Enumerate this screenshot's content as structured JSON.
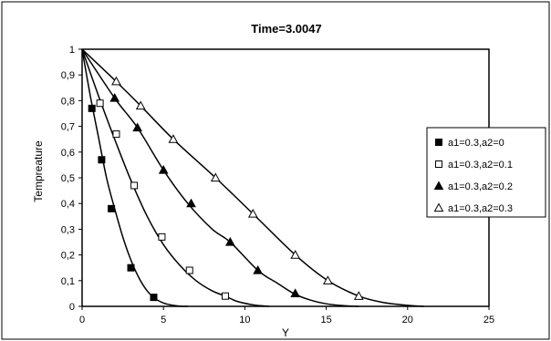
{
  "chart_data": {
    "type": "line",
    "title": "Time=3.0047",
    "xlabel": "Y",
    "ylabel": "Tempreature",
    "xlim": [
      0,
      25
    ],
    "ylim": [
      0,
      1
    ],
    "x_ticks": [
      "0",
      "5",
      "10",
      "15",
      "20",
      "25"
    ],
    "y_ticks": [
      "0",
      "0,1",
      "0,2",
      "0,3",
      "0,4",
      "0,5",
      "0,6",
      "0,7",
      "0,8",
      "0,9",
      "1"
    ],
    "grid": false,
    "legend_position": "right",
    "series": [
      {
        "name": "a1=0.3,a2=0",
        "marker": "filled-square",
        "curve": [
          [
            0,
            1
          ],
          [
            0.5,
            0.82
          ],
          [
            1,
            0.66
          ],
          [
            1.5,
            0.5
          ],
          [
            2,
            0.38
          ],
          [
            2.5,
            0.27
          ],
          [
            3,
            0.18
          ],
          [
            3.5,
            0.11
          ],
          [
            4,
            0.06
          ],
          [
            4.5,
            0.03
          ],
          [
            5,
            0.013
          ],
          [
            5.5,
            0.005
          ],
          [
            6,
            0.001
          ],
          [
            6.5,
            0
          ]
        ],
        "markers": [
          [
            0.6,
            0.77
          ],
          [
            1.2,
            0.57
          ],
          [
            1.8,
            0.38
          ],
          [
            3.0,
            0.15
          ],
          [
            4.4,
            0.035
          ]
        ]
      },
      {
        "name": "a1=0.3,a2=0.1",
        "marker": "open-square",
        "curve": [
          [
            0,
            1
          ],
          [
            1,
            0.82
          ],
          [
            2,
            0.65
          ],
          [
            3,
            0.49
          ],
          [
            4,
            0.35
          ],
          [
            5,
            0.24
          ],
          [
            6,
            0.16
          ],
          [
            7,
            0.1
          ],
          [
            8,
            0.06
          ],
          [
            8.8,
            0.04
          ],
          [
            9.5,
            0.02
          ],
          [
            10.5,
            0.006
          ],
          [
            11.5,
            0
          ]
        ],
        "markers": [
          [
            1.1,
            0.79
          ],
          [
            2.1,
            0.67
          ],
          [
            3.2,
            0.47
          ],
          [
            4.9,
            0.27
          ],
          [
            6.6,
            0.14
          ],
          [
            8.8,
            0.04
          ]
        ]
      },
      {
        "name": "a1=0.3,a2=0.2",
        "marker": "filled-triangle",
        "curve": [
          [
            0,
            1
          ],
          [
            2,
            0.81
          ],
          [
            3.4,
            0.695
          ],
          [
            5,
            0.53
          ],
          [
            6.5,
            0.4
          ],
          [
            8,
            0.3
          ],
          [
            9.1,
            0.25
          ],
          [
            10.8,
            0.14
          ],
          [
            12,
            0.09
          ],
          [
            13,
            0.05
          ],
          [
            14,
            0.025
          ],
          [
            15,
            0.01
          ],
          [
            16,
            0.003
          ],
          [
            17,
            0
          ]
        ],
        "markers": [
          [
            2.0,
            0.81
          ],
          [
            3.4,
            0.695
          ],
          [
            5.0,
            0.53
          ],
          [
            6.7,
            0.4
          ],
          [
            9.1,
            0.25
          ],
          [
            10.8,
            0.14
          ],
          [
            13.1,
            0.05
          ]
        ]
      },
      {
        "name": "a1=0.3,a2=0.3",
        "marker": "open-triangle",
        "curve": [
          [
            0,
            1
          ],
          [
            2,
            0.88
          ],
          [
            3.6,
            0.78
          ],
          [
            5.6,
            0.65
          ],
          [
            8.2,
            0.5
          ],
          [
            10.5,
            0.36
          ],
          [
            13.1,
            0.2
          ],
          [
            15.1,
            0.1
          ],
          [
            17,
            0.04
          ],
          [
            18.5,
            0.015
          ],
          [
            20,
            0.004
          ],
          [
            21,
            0
          ]
        ],
        "markers": [
          [
            2.1,
            0.875
          ],
          [
            3.6,
            0.78
          ],
          [
            5.6,
            0.65
          ],
          [
            8.2,
            0.5
          ],
          [
            10.5,
            0.36
          ],
          [
            13.1,
            0.2
          ],
          [
            15.1,
            0.1
          ],
          [
            17.0,
            0.04
          ]
        ]
      }
    ]
  }
}
